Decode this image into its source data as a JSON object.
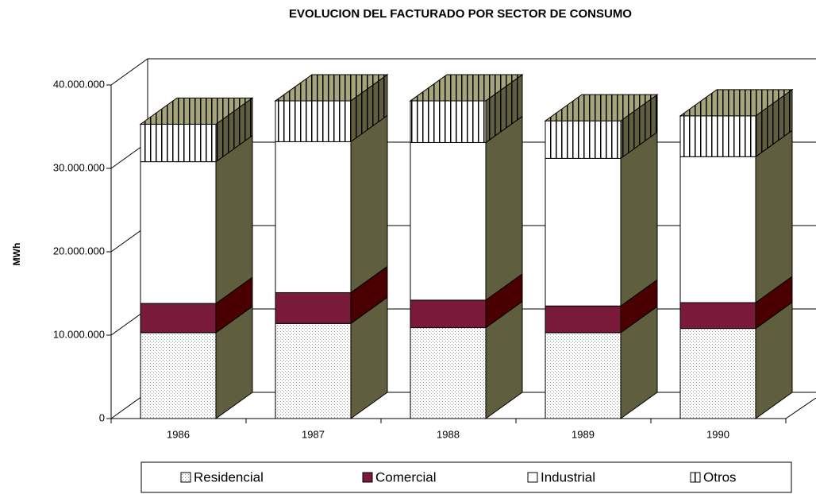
{
  "chart_data": {
    "type": "bar3d_stacked",
    "title": "EVOLUCION DEL FACTURADO POR SECTOR DE CONSUMO",
    "y_label": "MWh",
    "categories": [
      "1986",
      "1987",
      "1988",
      "1989",
      "1990"
    ],
    "series": [
      {
        "name": "Residencial",
        "color": "#ffffff",
        "side_color": "#5f5f3f",
        "pattern": "dots",
        "values": [
          10300000,
          11400000,
          10900000,
          10300000,
          10800000
        ]
      },
      {
        "name": "Comercial",
        "color": "#7a1a3a",
        "side_color": "#4a0000",
        "pattern": "none",
        "values": [
          3500000,
          3700000,
          3300000,
          3200000,
          3100000
        ]
      },
      {
        "name": "Industrial",
        "color": "#ffffff",
        "side_color": "#5f5f3f",
        "pattern": "none",
        "values": [
          17000000,
          18100000,
          18900000,
          17700000,
          17500000
        ]
      },
      {
        "name": "Otros",
        "color": "#ffffff",
        "side_color": "#5f5f3f",
        "pattern": "stripes",
        "values": [
          4500000,
          4900000,
          5000000,
          4500000,
          4900000
        ]
      }
    ],
    "ylim": [
      0,
      40000000
    ],
    "yticks": [
      0,
      {
        "value": 10000000,
        "label": "10.000.000"
      },
      {
        "value": 20000000,
        "label": "20.000.000"
      },
      {
        "value": 30000000,
        "label": "30.000.000"
      },
      {
        "value": 40000000,
        "label": "40.000.000"
      }
    ],
    "grid": true
  }
}
